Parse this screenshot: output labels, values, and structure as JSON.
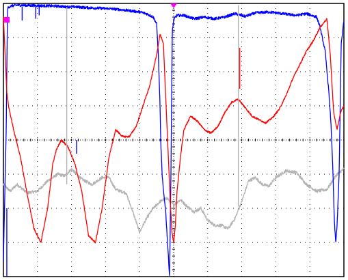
{
  "chart_data": {
    "type": "line",
    "title": "",
    "xlabel": "",
    "ylabel": "",
    "grid": true,
    "x_divisions": 10,
    "y_divisions": 8,
    "xlim": [
      0,
      10
    ],
    "ylim": [
      -4,
      4
    ],
    "markers": [
      {
        "name": "trigger-marker-left",
        "color": "#ff00ff"
      },
      {
        "name": "trigger-marker-top",
        "color": "#ff00ff"
      }
    ],
    "series": [
      {
        "color": "#0000ff",
        "noise": 0.04,
        "x": [
          0.0,
          0.08,
          0.12,
          0.2,
          0.4,
          0.8,
          1.2,
          1.6,
          1.8,
          2.1,
          2.4,
          2.8,
          3.2,
          3.6,
          4.0,
          4.2,
          4.4,
          4.5,
          4.55,
          4.6,
          4.62,
          4.66,
          4.7,
          4.76,
          4.82,
          4.88,
          4.92,
          4.96,
          5.0,
          5.05,
          5.1,
          5.3,
          5.6,
          5.9,
          6.2,
          6.5,
          6.8,
          7.1,
          7.4,
          7.8,
          8.2,
          8.6,
          8.9,
          9.2,
          9.3,
          9.45,
          9.55,
          9.62,
          9.68,
          9.72,
          9.76,
          9.8,
          9.86,
          9.92,
          10.0
        ],
        "y": [
          -3.5,
          0.2,
          3.85,
          3.92,
          3.95,
          3.94,
          3.93,
          3.92,
          3.9,
          3.9,
          3.88,
          3.86,
          3.84,
          3.8,
          3.75,
          3.7,
          3.6,
          3.4,
          2.5,
          1.0,
          0.0,
          -1.0,
          -1.5,
          -2.0,
          -3.0,
          -4.0,
          -1.0,
          3.2,
          3.5,
          3.6,
          3.65,
          3.65,
          3.55,
          3.6,
          3.55,
          3.6,
          3.7,
          3.62,
          3.72,
          3.75,
          3.7,
          3.65,
          3.7,
          3.6,
          3.3,
          2.6,
          1.5,
          0.5,
          -1.0,
          -2.4,
          -3.0,
          -2.5,
          -1.0,
          2.8,
          3.5
        ]
      },
      {
        "color": "#ff0000",
        "noise": 0.025,
        "x": [
          0.0,
          0.05,
          0.1,
          0.15,
          0.3,
          0.5,
          0.7,
          0.9,
          1.1,
          1.3,
          1.45,
          1.55,
          1.7,
          1.9,
          2.1,
          2.3,
          2.5,
          2.7,
          2.9,
          3.1,
          3.3,
          3.5,
          3.7,
          3.9,
          4.1,
          4.3,
          4.5,
          4.6,
          4.7,
          4.8,
          4.9,
          4.95,
          5.0,
          5.05,
          5.1,
          5.2,
          5.3,
          5.5,
          5.7,
          5.9,
          6.1,
          6.3,
          6.5,
          6.7,
          6.9,
          7.1,
          7.3,
          7.5,
          7.7,
          7.9,
          8.1,
          8.3,
          8.5,
          8.7,
          8.9,
          9.1,
          9.3,
          9.5,
          9.6,
          9.7,
          9.8,
          9.9,
          10.0
        ],
        "y": [
          3.6,
          2.5,
          1.4,
          1.0,
          0.3,
          -0.5,
          -1.6,
          -2.6,
          -3.0,
          -2.0,
          -0.7,
          -0.3,
          0.0,
          -0.2,
          -0.7,
          -1.5,
          -2.8,
          -3.0,
          -2.0,
          -0.5,
          0.3,
          0.1,
          0.1,
          0.4,
          1.0,
          1.6,
          2.5,
          3.1,
          2.8,
          0.5,
          -1.8,
          -2.7,
          -3.0,
          -2.5,
          -1.5,
          -0.5,
          0.3,
          0.7,
          0.55,
          0.3,
          0.2,
          0.4,
          0.8,
          1.1,
          1.2,
          0.95,
          0.7,
          0.6,
          0.5,
          0.65,
          0.9,
          1.3,
          1.8,
          2.2,
          2.6,
          2.9,
          3.3,
          3.55,
          2.5,
          0.8,
          0.3,
          0.8,
          1.0
        ]
      },
      {
        "color": "#b4b4b4",
        "noise": 0.045,
        "x": [
          0.0,
          0.2,
          0.4,
          0.7,
          1.0,
          1.3,
          1.6,
          1.8,
          2.0,
          2.3,
          2.6,
          2.9,
          3.1,
          3.3,
          3.6,
          3.8,
          4.0,
          4.2,
          4.4,
          4.6,
          4.8,
          5.0,
          5.2,
          5.4,
          5.6,
          5.8,
          6.0,
          6.2,
          6.4,
          6.6,
          6.8,
          7.0,
          7.2,
          7.4,
          7.6,
          7.8,
          8.0,
          8.3,
          8.6,
          8.9,
          9.2,
          9.5,
          9.8,
          10.0
        ],
        "y": [
          -1.3,
          -1.5,
          -1.3,
          -1.55,
          -1.5,
          -1.2,
          -1.0,
          -1.05,
          -0.85,
          -1.15,
          -1.3,
          -1.1,
          -1.1,
          -1.45,
          -1.55,
          -2.1,
          -2.7,
          -2.3,
          -2.0,
          -1.8,
          -1.7,
          -1.9,
          -1.75,
          -1.95,
          -2.1,
          -2.0,
          -2.35,
          -2.5,
          -2.5,
          -2.6,
          -2.3,
          -1.8,
          -1.2,
          -1.1,
          -1.3,
          -1.35,
          -1.1,
          -0.9,
          -0.95,
          -1.3,
          -1.5,
          -1.45,
          -1.0,
          -0.85
        ]
      }
    ],
    "spikes": [
      {
        "color": "#0000ff",
        "x": 0.55,
        "y_from": 3.9,
        "y_to": 3.5
      },
      {
        "color": "#0000ff",
        "x": 0.95,
        "y_from": 3.9,
        "y_to": 3.55
      },
      {
        "color": "#0000ff",
        "x": 1.05,
        "y_from": 3.9,
        "y_to": 3.65
      },
      {
        "color": "#b4b4b4",
        "x": 1.86,
        "y_from": 3.9,
        "y_to": -1.3
      },
      {
        "color": "#b4b4b4",
        "x": 6.9,
        "y_from": 3.95,
        "y_to": -1.95
      },
      {
        "color": "#ff0000",
        "x": 6.94,
        "y_from": 1.5,
        "y_to": 2.7
      },
      {
        "color": "#0000ff",
        "x": 2.15,
        "y_from": 0.0,
        "y_to": -0.4
      },
      {
        "color": "#0000ff",
        "x": 0.1,
        "y_from": -2.0,
        "y_to": -4.0
      }
    ]
  }
}
